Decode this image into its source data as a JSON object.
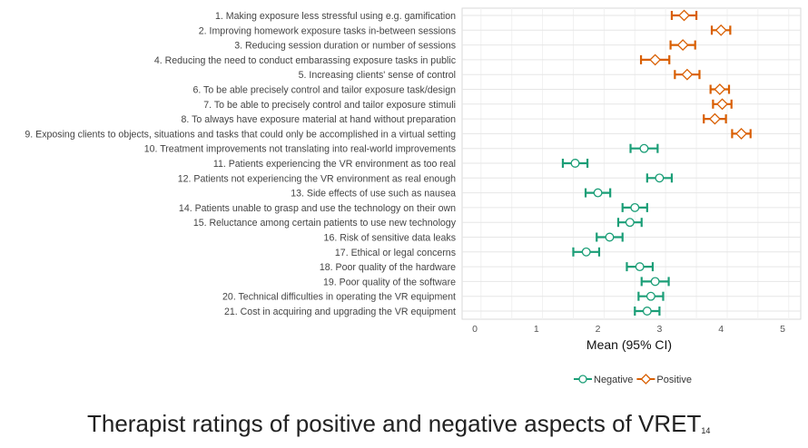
{
  "caption": {
    "text": "Therapist ratings of positive and negative aspects of VRET",
    "footnote": "14"
  },
  "chart_data": {
    "type": "scatter",
    "subtype": "dot-plot-with-error-bars",
    "xlabel": "Mean (95% CI)",
    "xlim": [
      -0.4,
      5.25
    ],
    "xticks": [
      "0",
      "1",
      "2",
      "3",
      "4",
      "5"
    ],
    "grid": true,
    "legend_position": "bottom",
    "categories": [
      "1. Making exposure less stressful using e.g. gamification",
      "2. Improving homework exposure tasks in-between sessions",
      "3. Reducing session duration or number of sessions",
      "4. Reducing the need to conduct embarassing exposure tasks in public",
      "5. Increasing clients' sense of control",
      "6. To be able precisely control and tailor exposure task/design",
      "7. To be able to precisely control and tailor exposure stimuli",
      "8. To always have exposure material at hand without preparation",
      "9. Exposing clients to objects, situations and tasks that could only be accomplished in a virtual setting",
      "10. Treatment improvements not translating into real-world improvements",
      "11. Patients experiencing the VR environment as too real",
      "12. Patients not experiencing the VR environment as real enough",
      "13. Side effects of use such as nausea",
      "14. Patients unable to grasp and use the technology on their own",
      "15. Reluctance among certain patients to use new technology",
      "16. Risk of sensitive data leaks",
      "17. Ethical or legal concerns",
      "18. Poor quality of the hardware",
      "19. Poor quality of the software",
      "20. Technical difficulties in operating the VR equipment",
      "21. Cost in acquiring and upgrading the VR equipment"
    ],
    "series": [
      {
        "name": "Negative",
        "color": "#1b9e77",
        "marker": "circle",
        "points": [
          {
            "row": 10,
            "mean": 2.75,
            "lo": 2.53,
            "hi": 2.97
          },
          {
            "row": 11,
            "mean": 1.63,
            "lo": 1.43,
            "hi": 1.83
          },
          {
            "row": 12,
            "mean": 3.0,
            "lo": 2.8,
            "hi": 3.2
          },
          {
            "row": 13,
            "mean": 2.0,
            "lo": 1.8,
            "hi": 2.2
          },
          {
            "row": 14,
            "mean": 2.6,
            "lo": 2.4,
            "hi": 2.8
          },
          {
            "row": 15,
            "mean": 2.52,
            "lo": 2.33,
            "hi": 2.71
          },
          {
            "row": 16,
            "mean": 2.19,
            "lo": 1.98,
            "hi": 2.4
          },
          {
            "row": 17,
            "mean": 1.81,
            "lo": 1.6,
            "hi": 2.02
          },
          {
            "row": 18,
            "mean": 2.68,
            "lo": 2.47,
            "hi": 2.89
          },
          {
            "row": 19,
            "mean": 2.93,
            "lo": 2.71,
            "hi": 3.15
          },
          {
            "row": 20,
            "mean": 2.86,
            "lo": 2.66,
            "hi": 3.06
          },
          {
            "row": 21,
            "mean": 2.8,
            "lo": 2.6,
            "hi": 3.0
          }
        ]
      },
      {
        "name": "Positive",
        "color": "#d95f02",
        "marker": "diamond",
        "points": [
          {
            "row": 1,
            "mean": 3.4,
            "lo": 3.2,
            "hi": 3.6
          },
          {
            "row": 2,
            "mean": 4.0,
            "lo": 3.85,
            "hi": 4.15
          },
          {
            "row": 3,
            "mean": 3.38,
            "lo": 3.18,
            "hi": 3.58
          },
          {
            "row": 4,
            "mean": 2.93,
            "lo": 2.7,
            "hi": 3.16
          },
          {
            "row": 5,
            "mean": 3.45,
            "lo": 3.25,
            "hi": 3.65
          },
          {
            "row": 6,
            "mean": 3.98,
            "lo": 3.83,
            "hi": 4.13
          },
          {
            "row": 7,
            "mean": 4.02,
            "lo": 3.87,
            "hi": 4.17
          },
          {
            "row": 8,
            "mean": 3.9,
            "lo": 3.72,
            "hi": 4.08
          },
          {
            "row": 9,
            "mean": 4.33,
            "lo": 4.18,
            "hi": 4.48
          }
        ]
      }
    ]
  }
}
